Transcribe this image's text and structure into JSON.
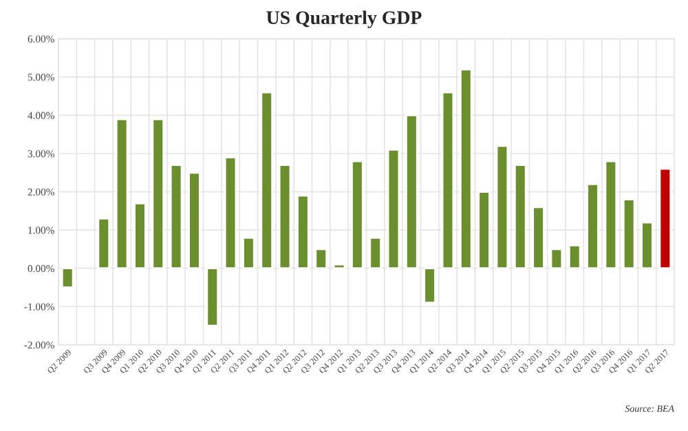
{
  "chart_data": {
    "type": "bar",
    "title": "US Quarterly GDP",
    "categories": [
      "Q2 2009",
      null,
      "Q3 2009",
      "Q4 2009",
      "Q1 2010",
      "Q2 2010",
      "Q3 2010",
      "Q4 2010",
      "Q1 2011",
      "Q2 2011",
      "Q3 2011",
      "Q4 2011",
      "Q1 2012",
      "Q2 2012",
      "Q3 2012",
      "Q4 2012",
      "Q1 2013",
      "Q2 2013",
      "Q3 2013",
      "Q4 2013",
      "Q1 2014",
      "Q2 2014",
      "Q3 2014",
      "Q4 2014",
      "Q1 2015",
      "Q2 2015",
      "Q3 2015",
      "Q4 2015",
      "Q1 2016",
      "Q2 2016",
      "Q3 2016",
      "Q4 2016",
      "Q1 2017",
      "Q2 2017"
    ],
    "values": [
      -0.5,
      null,
      1.3,
      3.9,
      1.7,
      3.9,
      2.7,
      2.5,
      -1.5,
      2.9,
      0.8,
      4.6,
      2.7,
      1.9,
      0.5,
      0.1,
      2.8,
      0.8,
      3.1,
      4.0,
      -0.9,
      4.6,
      5.2,
      2.0,
      3.2,
      2.7,
      1.6,
      0.5,
      0.6,
      2.2,
      2.8,
      1.8,
      1.2,
      2.6
    ],
    "colors": [
      "#6b8e2f",
      "#6b8e2f",
      "#6b8e2f",
      "#6b8e2f",
      "#6b8e2f",
      "#6b8e2f",
      "#6b8e2f",
      "#6b8e2f",
      "#6b8e2f",
      "#6b8e2f",
      "#6b8e2f",
      "#6b8e2f",
      "#6b8e2f",
      "#6b8e2f",
      "#6b8e2f",
      "#6b8e2f",
      "#6b8e2f",
      "#6b8e2f",
      "#6b8e2f",
      "#6b8e2f",
      "#6b8e2f",
      "#6b8e2f",
      "#6b8e2f",
      "#6b8e2f",
      "#6b8e2f",
      "#6b8e2f",
      "#6b8e2f",
      "#6b8e2f",
      "#6b8e2f",
      "#6b8e2f",
      "#6b8e2f",
      "#6b8e2f",
      "#6b8e2f",
      "#c00000"
    ],
    "ylim": [
      -2,
      6
    ],
    "yticks": [
      {
        "value": -2,
        "label": "-2.00%"
      },
      {
        "value": -1,
        "label": "-1.00%"
      },
      {
        "value": 0,
        "label": "0.00%"
      },
      {
        "value": 1,
        "label": "1.00%"
      },
      {
        "value": 2,
        "label": "2.00%"
      },
      {
        "value": 3,
        "label": "3.00%"
      },
      {
        "value": 4,
        "label": "4.00%"
      },
      {
        "value": 5,
        "label": "5.00%"
      },
      {
        "value": 6,
        "label": "6.00%"
      }
    ],
    "grid": true,
    "annotations": [
      "Source: BEA"
    ]
  }
}
